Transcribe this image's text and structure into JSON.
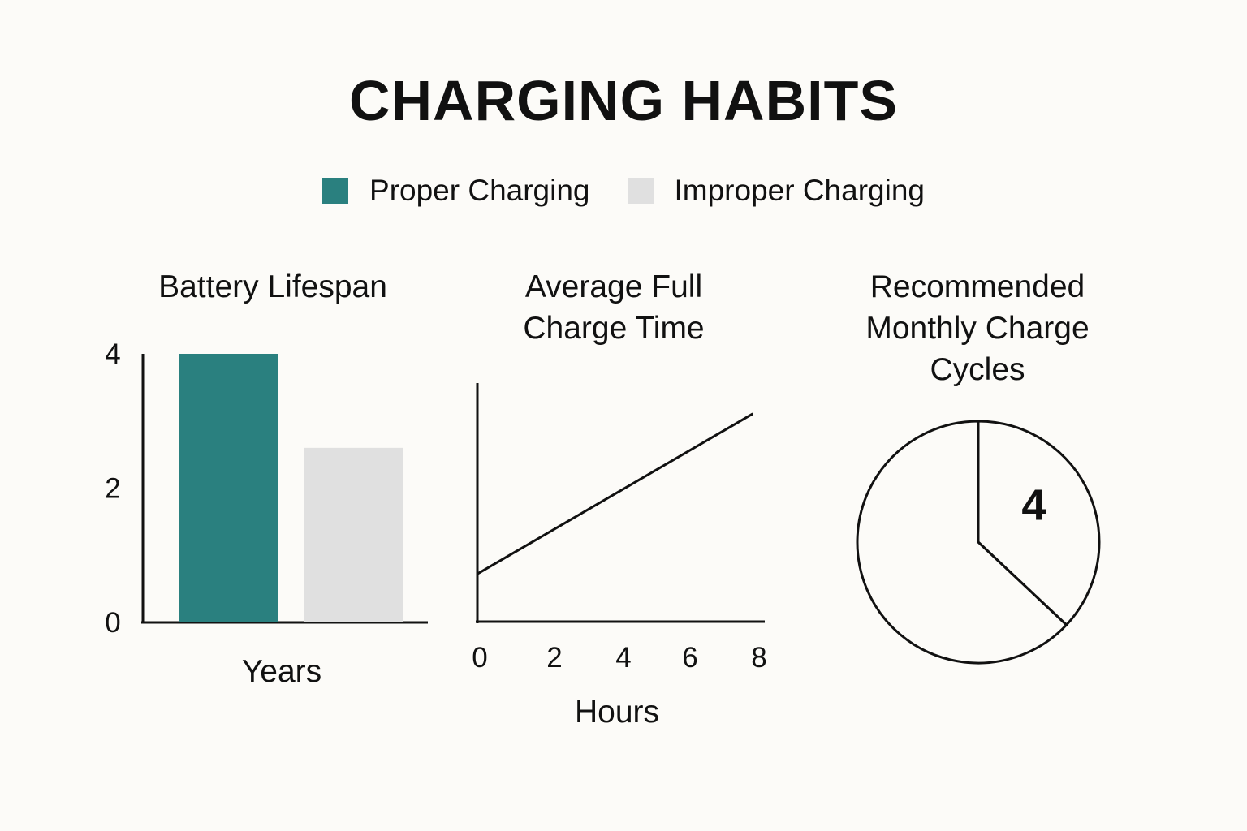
{
  "title": "CHARGING HABITS",
  "colors": {
    "proper": "#2a807f",
    "improper": "#e0e0e0",
    "ink": "#111111"
  },
  "legend": [
    {
      "label": "Proper Charging",
      "color": "#2a807f"
    },
    {
      "label": "Improper Charging",
      "color": "#e0e0e0"
    }
  ],
  "chart_data": [
    {
      "type": "bar",
      "title_lines": [
        "Battery Lifespan"
      ],
      "categories": [
        "Proper Charging",
        "Improper Charging"
      ],
      "values": [
        4,
        2.6
      ],
      "xlabel": "Years",
      "ylabel": "",
      "ylim": [
        0,
        4
      ],
      "yticks": [
        "0",
        "2",
        "4"
      ],
      "legend_position": "top",
      "grid": false
    },
    {
      "type": "line",
      "title_lines": [
        "Average Full",
        "Charge Time"
      ],
      "x": [
        0,
        7.8
      ],
      "y": [
        0.7,
        3.05
      ],
      "xlabel": "Hours",
      "ylabel": "",
      "xlim": [
        0,
        8
      ],
      "ylim": [
        0,
        3.5
      ],
      "xticks": [
        "0",
        "2",
        "4",
        "6",
        "8"
      ],
      "grid": false
    },
    {
      "type": "pie",
      "title_lines": [
        "Recommended",
        "Monthly Charge",
        "Cycles"
      ],
      "slices": [
        {
          "label": "4",
          "value": 37
        },
        {
          "label": "",
          "value": 63
        }
      ]
    }
  ]
}
